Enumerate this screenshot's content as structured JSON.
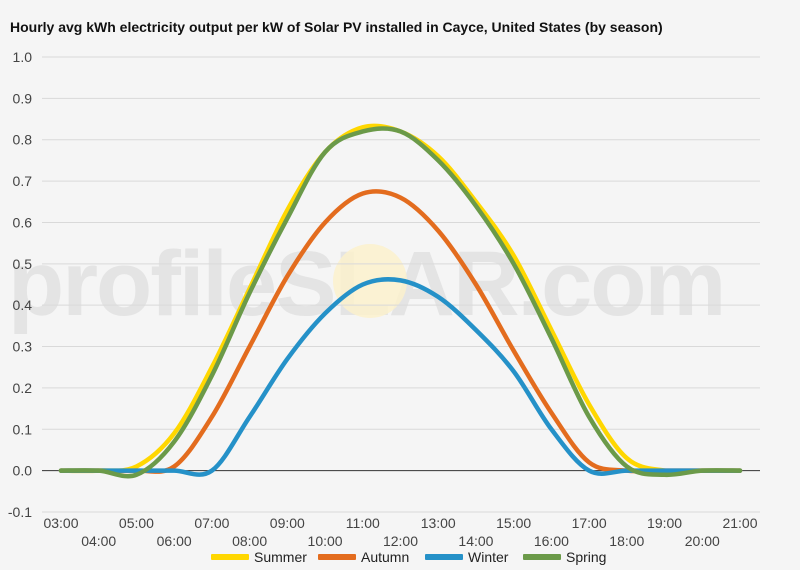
{
  "title": "Hourly avg kWh electricity output per kW of Solar PV installed in Cayce, United States (by season)",
  "watermark": {
    "left": "profileS",
    "right": "LAR.com"
  },
  "chart_data": {
    "type": "line",
    "title": "Hourly avg kWh electricity output per kW of Solar PV installed in Cayce, United States (by season)",
    "xlabel": "",
    "ylabel": "",
    "ylim": [
      -0.1,
      1.0
    ],
    "yticks": [
      "-0.1",
      "0.0",
      "0.1",
      "0.2",
      "0.3",
      "0.4",
      "0.5",
      "0.6",
      "0.7",
      "0.8",
      "0.9",
      "1.0"
    ],
    "x": [
      "03:00",
      "04:00",
      "05:00",
      "06:00",
      "07:00",
      "08:00",
      "09:00",
      "10:00",
      "11:00",
      "12:00",
      "13:00",
      "14:00",
      "15:00",
      "16:00",
      "17:00",
      "18:00",
      "19:00",
      "20:00",
      "21:00"
    ],
    "grid": true,
    "legend_position": "bottom",
    "series": [
      {
        "name": "Summer",
        "color": "#FFD700",
        "values": [
          0.0,
          0.0,
          0.01,
          0.09,
          0.25,
          0.44,
          0.63,
          0.77,
          0.83,
          0.82,
          0.76,
          0.65,
          0.52,
          0.34,
          0.16,
          0.03,
          0.0,
          0.0,
          0.0
        ]
      },
      {
        "name": "Autumn",
        "color": "#E36C1E",
        "values": [
          0.0,
          0.0,
          0.0,
          0.01,
          0.13,
          0.3,
          0.47,
          0.6,
          0.67,
          0.66,
          0.58,
          0.45,
          0.29,
          0.14,
          0.02,
          0.0,
          0.0,
          0.0,
          0.0
        ]
      },
      {
        "name": "Winter",
        "color": "#2591C8",
        "values": [
          0.0,
          0.0,
          0.0,
          0.0,
          0.0,
          0.13,
          0.27,
          0.38,
          0.45,
          0.46,
          0.42,
          0.34,
          0.24,
          0.1,
          0.0,
          0.0,
          0.0,
          0.0,
          0.0
        ]
      },
      {
        "name": "Spring",
        "color": "#6B9A49",
        "values": [
          0.0,
          0.0,
          -0.01,
          0.07,
          0.23,
          0.43,
          0.61,
          0.77,
          0.82,
          0.82,
          0.75,
          0.64,
          0.5,
          0.32,
          0.13,
          0.01,
          -0.01,
          0.0,
          0.0
        ]
      }
    ]
  }
}
